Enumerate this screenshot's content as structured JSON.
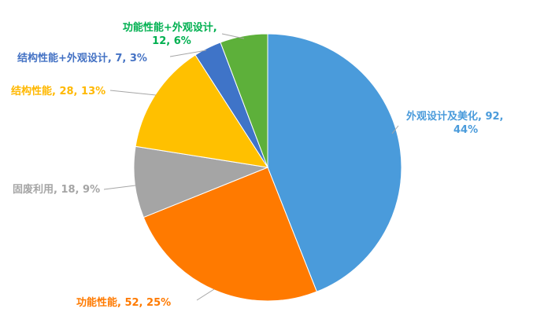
{
  "chart_data": {
    "type": "pie",
    "start": "top",
    "direction": "clockwise",
    "slices": [
      {
        "label": "外观设计及美化",
        "value": 92,
        "percent": "44%",
        "color": "#4A9BDB",
        "label_color": "#4A9BDB"
      },
      {
        "label": "功能性能",
        "value": 52,
        "percent": "25%",
        "color": "#FF7A00",
        "label_color": "#FF7A00"
      },
      {
        "label": "固废利用",
        "value": 18,
        "percent": "9%",
        "color": "#A5A5A5",
        "label_color": "#A5A5A5"
      },
      {
        "label": "结构性能",
        "value": 28,
        "percent": "13%",
        "color": "#FFC000",
        "label_color": "#FFB800"
      },
      {
        "label": "结构性能+外观设计",
        "value": 7,
        "percent": "3%",
        "color": "#3F74C8",
        "label_color": "#4472C4"
      },
      {
        "label": "功能性能+外观设计",
        "value": 12,
        "percent": "6%",
        "color": "#5DB03A",
        "label_color": "#00B050"
      }
    ]
  }
}
